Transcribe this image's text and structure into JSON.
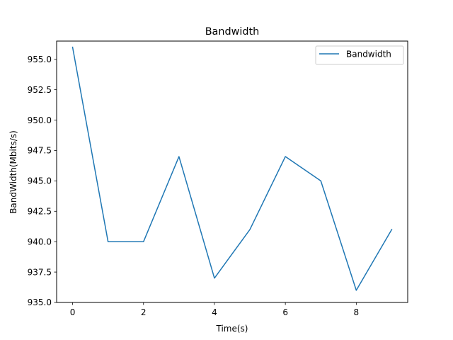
{
  "chart_data": {
    "type": "line",
    "title": "Bandwidth",
    "xlabel": "Time(s)",
    "ylabel": "BandWidth(Mbits/s)",
    "x": [
      0,
      1,
      2,
      3,
      4,
      5,
      6,
      7,
      8,
      9
    ],
    "series": [
      {
        "name": "Bandwidth",
        "color": "#1f77b4",
        "values": [
          956,
          940,
          940,
          947,
          937,
          941,
          947,
          945,
          936,
          941
        ]
      }
    ],
    "xlim": [
      -0.45,
      9.45
    ],
    "ylim": [
      935.0,
      956.5
    ],
    "xticks": [
      0,
      2,
      4,
      6,
      8
    ],
    "xtick_labels": [
      "0",
      "2",
      "4",
      "6",
      "8"
    ],
    "yticks": [
      935.0,
      937.5,
      940.0,
      942.5,
      945.0,
      947.5,
      950.0,
      952.5,
      955.0
    ],
    "ytick_labels": [
      "935.0",
      "937.5",
      "940.0",
      "942.5",
      "945.0",
      "947.5",
      "950.0",
      "952.5",
      "955.0"
    ],
    "grid": false,
    "legend_position": "top-right"
  }
}
